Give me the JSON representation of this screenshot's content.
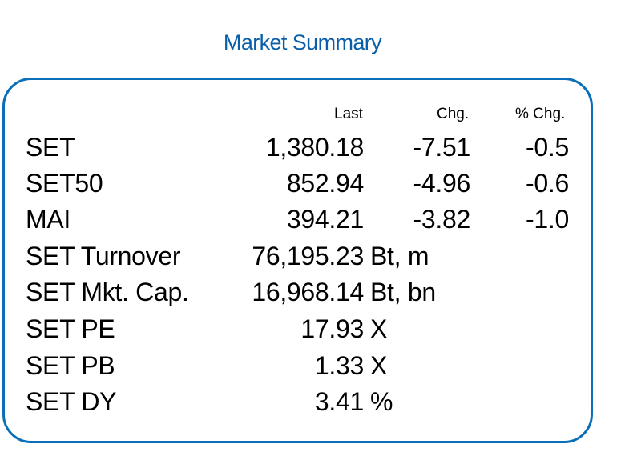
{
  "title": "Market Summary",
  "headers": {
    "last": "Last",
    "chg": "Chg.",
    "pct_chg": "% Chg."
  },
  "indices": [
    {
      "label": "SET",
      "last": "1,380.18",
      "chg": "-7.51",
      "pct": "-0.5"
    },
    {
      "label": "SET50",
      "last": "852.94",
      "chg": "-4.96",
      "pct": "-0.6"
    },
    {
      "label": "MAI",
      "last": "394.21",
      "chg": "-3.82",
      "pct": "-1.0"
    }
  ],
  "stats": [
    {
      "label": "SET Turnover",
      "value": "76,195.23",
      "unit": "Bt, m"
    },
    {
      "label": "SET Mkt. Cap.",
      "value": "16,968.14",
      "unit": "Bt, bn"
    },
    {
      "label": "SET PE",
      "value": "17.93",
      "unit": "X"
    },
    {
      "label": "SET PB",
      "value": "1.33",
      "unit": "X"
    },
    {
      "label": "SET DY",
      "value": "3.41",
      "unit": "%"
    }
  ],
  "colors": {
    "title": "#0a5fa8",
    "border": "#0a6fb8",
    "text": "#000000"
  }
}
